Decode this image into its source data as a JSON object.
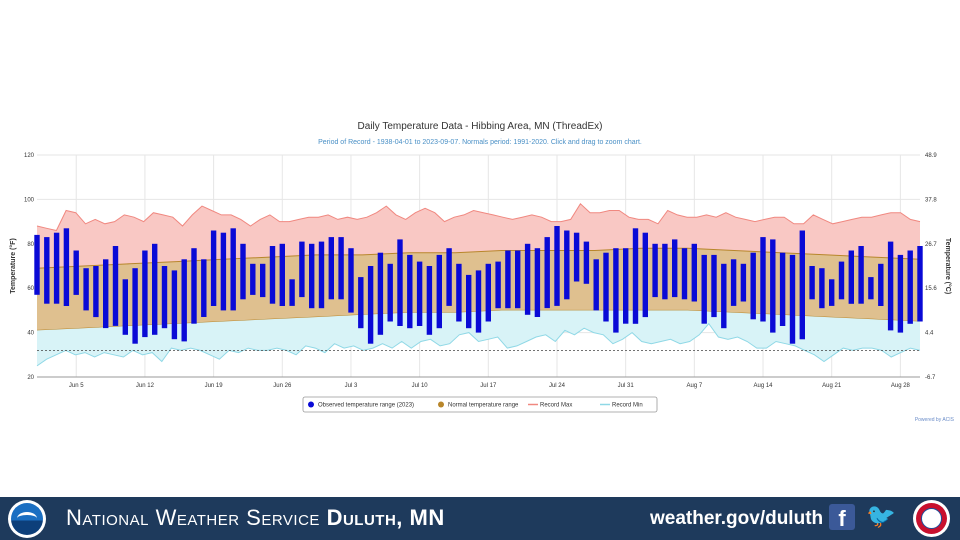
{
  "chart_data": {
    "type": "bar",
    "title": "Daily Temperature Data - Hibbing Area, MN (ThreadEx)",
    "subtitle": "Period of Record - 1938-04-01 to 2023-09-07. Normals period: 1991-2020. Click and drag to zoom chart.",
    "ylabel_left": "Temperature (°F)",
    "ylabel_right": "Temperature (°C)",
    "ylim": [
      20,
      120
    ],
    "yticks_left": [
      "120",
      "100",
      "80",
      "60",
      "40",
      "20"
    ],
    "yticks_right": [
      "48.9",
      "37.8",
      "26.7",
      "15.6",
      "4.4",
      "-6.7"
    ],
    "xticks": [
      "Jun 5",
      "Jun 12",
      "Jun 19",
      "Jun 26",
      "Jul 3",
      "Jul 10",
      "Jul 17",
      "Jul 24",
      "Jul 31",
      "Aug 7",
      "Aug 14",
      "Aug 21",
      "Aug 28"
    ],
    "x_start": "Jun 1",
    "reference_line": 32,
    "grid": true,
    "legend_position": "bottom",
    "credit": "Powered by ACIS",
    "legend": [
      {
        "label": "Observed temperature range (2023)",
        "color": "#0a0ad6"
      },
      {
        "label": "Normal temperature range",
        "color": "#b8862b"
      },
      {
        "label": "Record Max",
        "color": "#f08880"
      },
      {
        "label": "Record Min",
        "color": "#8fd8e6"
      }
    ],
    "series": [
      {
        "name": "Observed temperature range (2023)",
        "type": "range",
        "max": [
          84,
          83,
          85,
          87,
          77,
          69,
          70,
          73,
          79,
          64,
          69,
          77,
          80,
          70,
          68,
          73,
          78,
          73,
          86,
          85,
          87,
          80,
          71,
          71,
          79,
          80,
          64,
          81,
          80,
          81,
          83,
          83,
          78,
          65,
          70,
          76,
          71,
          82,
          75,
          72,
          70,
          75,
          78,
          71,
          66,
          68,
          71,
          72,
          77,
          77,
          80,
          78,
          83,
          88,
          86,
          85,
          81,
          73,
          76,
          78,
          78,
          87,
          85,
          80,
          80,
          82,
          78,
          80,
          75,
          75,
          71,
          73,
          71,
          76,
          83,
          82,
          76,
          75,
          86,
          70,
          69,
          64,
          72,
          77,
          79,
          65,
          71,
          81,
          75,
          77,
          79
        ],
        "min": [
          57,
          53,
          53,
          52,
          57,
          50,
          47,
          42,
          43,
          39,
          35,
          38,
          39,
          42,
          37,
          36,
          44,
          47,
          52,
          50,
          50,
          55,
          57,
          56,
          53,
          52,
          52,
          56,
          51,
          51,
          55,
          55,
          49,
          42,
          35,
          39,
          45,
          43,
          42,
          43,
          39,
          42,
          52,
          45,
          42,
          40,
          45,
          51,
          51,
          51,
          48,
          47,
          51,
          52,
          55,
          63,
          62,
          50,
          45,
          40,
          44,
          44,
          47,
          56,
          55,
          56,
          55,
          54,
          44,
          47,
          42,
          52,
          54,
          46,
          45,
          40,
          43,
          35,
          37,
          55,
          51,
          52,
          55,
          53,
          53,
          55,
          52,
          41,
          40,
          44,
          45
        ]
      },
      {
        "name": "Normal temperature range",
        "type": "band",
        "upper": [
          69,
          70,
          71,
          72,
          73,
          74,
          75,
          75,
          76,
          76,
          77,
          77,
          77,
          78,
          78,
          77,
          76,
          75,
          74,
          73
        ],
        "lower": [
          41,
          42,
          43,
          44,
          45,
          46,
          47,
          48,
          49,
          49,
          50,
          50,
          50,
          50,
          50,
          49,
          48,
          47,
          46,
          45
        ]
      },
      {
        "name": "Record Max",
        "type": "area",
        "values": [
          88,
          87,
          86,
          95,
          94,
          89,
          91,
          89,
          90,
          93,
          92,
          90,
          94,
          93,
          92,
          88,
          93,
          97,
          95,
          93,
          93,
          91,
          88,
          91,
          93,
          90,
          90,
          91,
          92,
          92,
          93,
          91,
          92,
          91,
          92,
          94,
          97,
          93,
          91,
          94,
          96,
          94,
          90,
          92,
          93,
          95,
          94,
          93,
          92,
          91,
          92,
          93,
          92,
          90,
          90,
          91,
          98,
          94,
          94,
          95,
          95,
          92,
          91,
          91,
          89,
          95,
          93,
          92,
          92,
          93,
          92,
          94,
          92,
          91,
          90,
          91,
          92,
          92,
          89,
          89,
          93,
          91,
          89,
          90,
          91,
          92,
          92,
          93,
          94,
          94,
          91,
          90
        ]
      },
      {
        "name": "Record Min",
        "type": "area",
        "values": [
          25,
          28,
          30,
          32,
          30,
          31,
          29,
          31,
          30,
          29,
          32,
          30,
          31,
          27,
          33,
          32,
          33,
          32,
          30,
          28,
          32,
          31,
          33,
          32,
          32,
          33,
          32,
          30,
          34,
          33,
          31,
          35,
          33,
          34,
          32,
          33,
          35,
          33,
          36,
          33,
          36,
          37,
          34,
          35,
          39,
          40,
          36,
          37,
          38,
          33,
          34,
          36,
          38,
          39,
          36,
          41,
          39,
          42,
          40,
          39,
          35,
          37,
          40,
          36,
          35,
          36,
          37,
          35,
          36,
          39,
          44,
          38,
          37,
          38,
          36,
          33,
          33,
          36,
          35,
          34,
          32,
          30,
          27,
          30,
          33,
          32,
          33,
          33,
          32,
          29,
          31,
          33,
          32
        ]
      }
    ]
  },
  "footer": {
    "org_prefix": "National Weather Service",
    "org_office": "Duluth, MN",
    "url": "weather.gov/duluth",
    "icons": [
      "noaa-logo-icon",
      "facebook-icon",
      "twitter-icon",
      "nws-logo-icon"
    ]
  }
}
